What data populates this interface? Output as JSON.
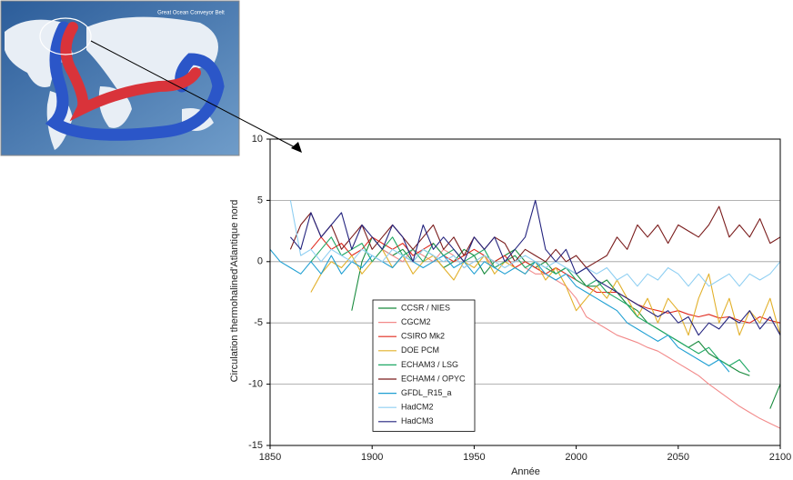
{
  "inset": {
    "title": "Great Ocean Conveyor Belt"
  },
  "chart_data": {
    "type": "line",
    "xlabel": "Année",
    "ylabel": "Circulation thermohalined'Atlantique nord",
    "xlim": [
      1850,
      2100
    ],
    "xticks": [
      1850,
      1900,
      1950,
      2000,
      2050,
      2100
    ],
    "ylim": [
      -15,
      10
    ],
    "yticks": [
      -15,
      -10,
      -5,
      0,
      5,
      10
    ],
    "grid": true,
    "legend": "lower left",
    "x": [
      1850,
      1855,
      1860,
      1865,
      1870,
      1875,
      1880,
      1885,
      1890,
      1895,
      1900,
      1905,
      1910,
      1915,
      1920,
      1925,
      1930,
      1935,
      1940,
      1945,
      1950,
      1955,
      1960,
      1965,
      1970,
      1975,
      1980,
      1985,
      1990,
      1995,
      2000,
      2005,
      2010,
      2015,
      2020,
      2025,
      2030,
      2035,
      2040,
      2045,
      2050,
      2055,
      2060,
      2065,
      2070,
      2075,
      2080,
      2085,
      2090,
      2095,
      2100
    ],
    "series": [
      {
        "name": "CCSR / NIES",
        "color": "#178a3c",
        "values": [
          null,
          null,
          null,
          null,
          null,
          null,
          null,
          null,
          -4,
          0,
          2,
          1,
          0.5,
          1,
          0,
          1,
          0.5,
          -0.5,
          0,
          1,
          0.5,
          -1,
          0,
          0.5,
          1,
          0,
          -0.5,
          0,
          -1,
          -0.5,
          -1,
          -2,
          -2,
          -1.5,
          -2.5,
          -3.5,
          -4,
          -5,
          -5.5,
          -6,
          -6.5,
          -7,
          -6.5,
          -7.5,
          -8,
          -8.5,
          -9,
          -9.3,
          null,
          -12,
          -10
        ]
      },
      {
        "name": "CGCM2",
        "color": "#f28a8a",
        "values": [
          null,
          null,
          null,
          null,
          null,
          null,
          null,
          null,
          null,
          null,
          0,
          1,
          0.5,
          0,
          1,
          0.5,
          0,
          1,
          0.5,
          -0.5,
          0,
          0.5,
          -0.5,
          0,
          0.5,
          -0.5,
          -1,
          -1,
          -1.5,
          -2,
          -3,
          -4.5,
          -5,
          -5.5,
          -6,
          -6.3,
          -6.6,
          -7,
          -7.3,
          -7.8,
          -8.3,
          -8.8,
          -9.3,
          -10,
          -10.6,
          -11.2,
          -11.8,
          -12.3,
          -12.8,
          -13.2,
          -13.6
        ]
      },
      {
        "name": "CSIRO Mk2",
        "color": "#e02a1e",
        "values": [
          null,
          null,
          null,
          null,
          1,
          2,
          1,
          1.5,
          0.5,
          1,
          2,
          1.5,
          1,
          1.5,
          0.5,
          1,
          1.5,
          0.5,
          0,
          0.5,
          1,
          0.5,
          0,
          0.5,
          -0.5,
          0,
          -0.5,
          -1,
          -0.5,
          -1,
          -1.5,
          -2,
          -2.5,
          -2.5,
          -2.5,
          -3,
          -3.5,
          -3.8,
          -4,
          -4.2,
          -4,
          -4.3,
          -4.5,
          -4.3,
          -4.6,
          -4.5,
          -4.8,
          -5,
          -4.5,
          -4.8,
          -5
        ]
      },
      {
        "name": "DOE PCM",
        "color": "#e2b02a",
        "values": [
          null,
          null,
          null,
          null,
          -2.5,
          -1,
          0,
          -0.5,
          0.5,
          -1,
          0,
          1,
          -0.5,
          0.5,
          -1,
          0,
          0.5,
          -0.5,
          -1.5,
          0,
          -0.5,
          0.5,
          -1,
          0,
          -0.5,
          -1,
          0,
          -1.5,
          -0.5,
          -2,
          -4,
          -3,
          -2,
          -3,
          -1.5,
          -3,
          -4.5,
          -3,
          -5,
          -3,
          -4,
          -6,
          -3,
          -1,
          -5,
          -3,
          -6,
          -4,
          -5,
          -3,
          -6
        ]
      },
      {
        "name": "ECHAM3 / LSG",
        "color": "#1fa865",
        "values": [
          null,
          null,
          null,
          null,
          0,
          1,
          2,
          0.5,
          1,
          1.5,
          0,
          1,
          2,
          0.5,
          1,
          0,
          1.5,
          0.5,
          1,
          0,
          0.5,
          1,
          -0.5,
          0,
          0.5,
          -0.5,
          0,
          -0.5,
          -1,
          -0.5,
          -1.5,
          -2,
          -1.5,
          -2.5,
          -3,
          -3.5,
          -4.5,
          -5,
          -5.5,
          -6,
          -6.5,
          -7,
          -7.5,
          -7,
          -8,
          -8.5,
          -8,
          -9,
          null,
          null,
          null
        ]
      },
      {
        "name": "ECHAM4 / OPYC",
        "color": "#7a1c1c",
        "values": [
          null,
          null,
          1,
          3,
          4,
          2,
          3,
          1,
          2,
          3,
          1,
          2,
          3,
          2,
          1,
          2,
          3,
          1,
          2,
          0.5,
          2,
          1,
          2,
          1.5,
          0,
          1,
          0.5,
          0,
          1,
          0,
          0.5,
          -0.5,
          0,
          0.5,
          2,
          1,
          3,
          2,
          3,
          1.5,
          3,
          2.5,
          2,
          3,
          4.5,
          2,
          3,
          2,
          3.5,
          1.5,
          2
        ]
      },
      {
        "name": "GFDL_R15_a",
        "color": "#1e9fd2",
        "values": [
          1,
          0,
          -0.5,
          -1,
          0,
          -1,
          0.5,
          -1,
          0,
          -0.5,
          0.5,
          0,
          -0.5,
          0.5,
          0,
          -0.5,
          0,
          0.5,
          -0.5,
          0,
          -1,
          0,
          -0.5,
          -1,
          -0.5,
          -1,
          0,
          -1,
          -1.5,
          -1,
          -2,
          -2.5,
          -3,
          -3.5,
          -4,
          -5,
          -5.5,
          -6,
          -6.5,
          -6,
          -7,
          -7.5,
          -8,
          -8.5,
          -8,
          -9,
          null,
          null,
          null,
          null,
          null
        ]
      },
      {
        "name": "HadCM2",
        "color": "#8fcff2",
        "values": [
          null,
          null,
          5,
          0.5,
          1,
          0,
          1,
          0.5,
          0,
          1,
          0.5,
          0,
          1,
          0.5,
          0,
          1,
          0.5,
          0,
          0.5,
          -0.5,
          0,
          0.5,
          0,
          -0.5,
          0,
          0.5,
          0,
          -0.5,
          0,
          -0.5,
          -1,
          -0.5,
          -1,
          -0.5,
          -1.5,
          -1,
          -2,
          -1,
          -1.5,
          -0.5,
          -1,
          -2,
          -1,
          -2,
          -1.5,
          -1,
          -2,
          -1,
          -1.5,
          -1,
          0
        ]
      },
      {
        "name": "HadCM3",
        "color": "#23237e",
        "values": [
          null,
          null,
          2,
          1,
          4,
          2,
          3,
          4,
          1,
          3,
          2,
          1,
          3,
          2,
          0,
          3,
          1,
          2,
          1,
          0,
          2,
          1,
          2,
          0,
          1,
          2,
          5,
          1,
          0,
          1,
          -1,
          -0.5,
          -1.5,
          -2,
          -2.5,
          -3,
          -3.5,
          -4,
          -4.5,
          -4,
          -5,
          -4.5,
          -6,
          -5,
          -5.5,
          -4.5,
          -5,
          -4,
          -5.5,
          -4.5,
          -6
        ]
      }
    ]
  }
}
